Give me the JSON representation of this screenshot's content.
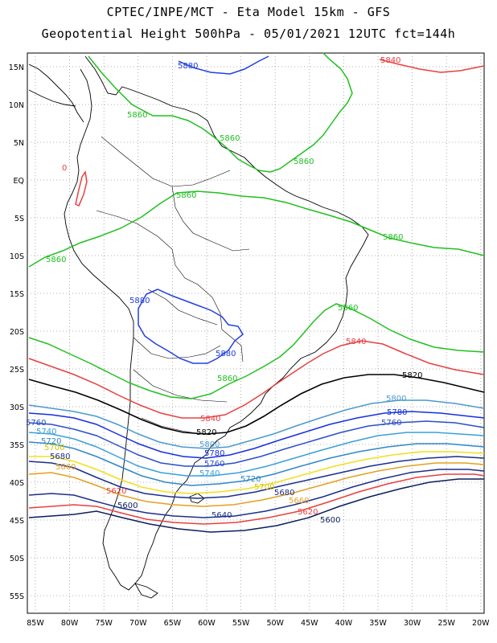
{
  "header": {
    "line1": "CPTEC/INPE/MCT -  Eta Model 15km - GFS",
    "line2": "Geopotential Height 500hPa - 05/01/2021 12UTC fct=144h"
  },
  "axes": {
    "lat_ticks": [
      "15N",
      "10N",
      "5N",
      "EQ",
      "5S",
      "10S",
      "15S",
      "20S",
      "25S",
      "30S",
      "35S",
      "40S",
      "45S",
      "50S",
      "55S"
    ],
    "lon_ticks": [
      "85W",
      "80W",
      "75W",
      "70W",
      "65W",
      "60W",
      "55W",
      "50W",
      "45W",
      "40W",
      "35W",
      "30W",
      "25W",
      "20W"
    ]
  },
  "colors": {
    "c5600": "#0b1f5c",
    "c5620": "#e8403f",
    "c5640": "#1b2f8c",
    "c5660": "#e3a020",
    "c5680": "#1a2e8e",
    "c5700": "#f0e020",
    "c5720": "#2f88c8",
    "c5740": "#3aa0d8",
    "c5760": "#2a4fc8",
    "c5780": "#1530e0",
    "c5800": "#4a9ad0",
    "c5820": "#000000",
    "c5840": "#e84040",
    "c5860": "#20c020",
    "c5880": "#2040e0"
  },
  "contours": [
    {
      "value": 5880,
      "label": "5880"
    },
    {
      "value": 5860,
      "label": "5860"
    },
    {
      "value": 5840,
      "label": "5840"
    },
    {
      "value": 5820,
      "label": "5820"
    },
    {
      "value": 5800,
      "label": "5800"
    },
    {
      "value": 5780,
      "label": "5780"
    },
    {
      "value": 5760,
      "label": "5760"
    },
    {
      "value": 5740,
      "label": "5740"
    },
    {
      "value": 5720,
      "label": "5720"
    },
    {
      "value": 5700,
      "label": "5700"
    },
    {
      "value": 5680,
      "label": "5680"
    },
    {
      "value": 5660,
      "label": "5660"
    },
    {
      "value": 5640,
      "label": "5640"
    },
    {
      "value": 5620,
      "label": "5620"
    },
    {
      "value": 5600,
      "label": "5600"
    }
  ],
  "extra_labels": {
    "zero": "0"
  }
}
